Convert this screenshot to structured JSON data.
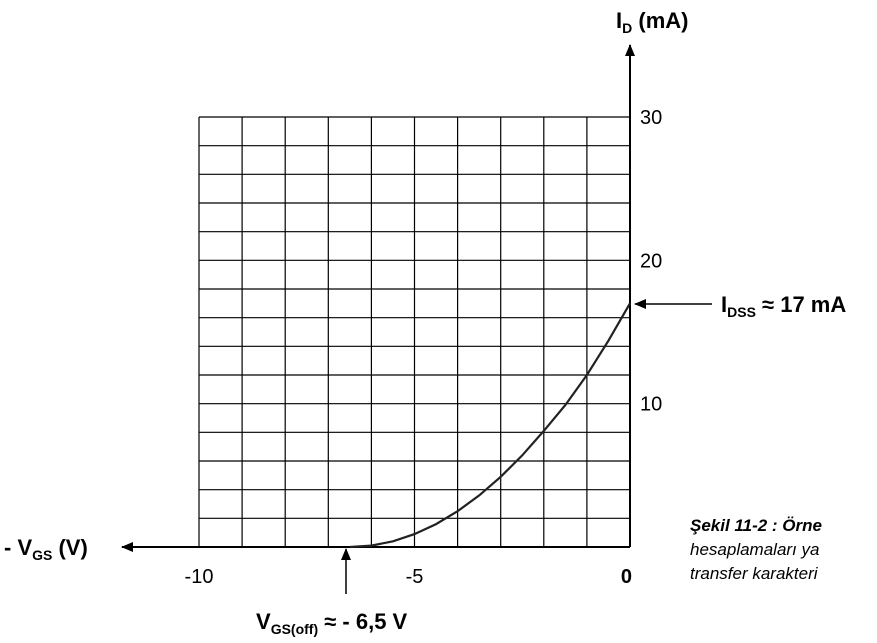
{
  "chart_data": {
    "type": "line",
    "x_axis": {
      "label_prefix": "- V",
      "label_sub": "GS",
      "label_suffix": " (V)",
      "ticks": [
        "-10",
        "-5",
        "0"
      ],
      "tick_values": [
        -10,
        -5,
        0
      ],
      "range": [
        -10,
        0
      ],
      "grid_step": 1
    },
    "y_axis": {
      "label_prefix": "I",
      "label_sub": "D",
      "label_suffix": " (mA)",
      "ticks": [
        "10",
        "20",
        "30"
      ],
      "tick_values": [
        10,
        20,
        30
      ],
      "range": [
        0,
        30
      ],
      "grid_step": 2
    },
    "grid": true,
    "series": [
      {
        "x": [
          -6.5,
          -6.0,
          -5.5,
          -5.0,
          -4.5,
          -4.0,
          -3.5,
          -3.0,
          -2.5,
          -2.0,
          -1.5,
          -1.0,
          -0.5,
          0.0
        ],
        "y": [
          0,
          0.1,
          0.4,
          0.9,
          1.6,
          2.5,
          3.6,
          4.9,
          6.4,
          8.1,
          9.9,
          12.0,
          14.4,
          17.0
        ]
      }
    ],
    "annotations": {
      "idss": {
        "prefix": "I",
        "sub": "DSS",
        "suffix": " ≈ 17 mA",
        "x": 0,
        "y": 17
      },
      "vgsoff": {
        "prefix": "V",
        "sub": "GS(off)",
        "suffix": " ≈ - 6,5 V",
        "x": -6.5,
        "y": 0
      }
    },
    "caption": [
      "Şekil 11-2 : Örne",
      "hesaplamaları ya",
      "transfer karakteri"
    ]
  }
}
